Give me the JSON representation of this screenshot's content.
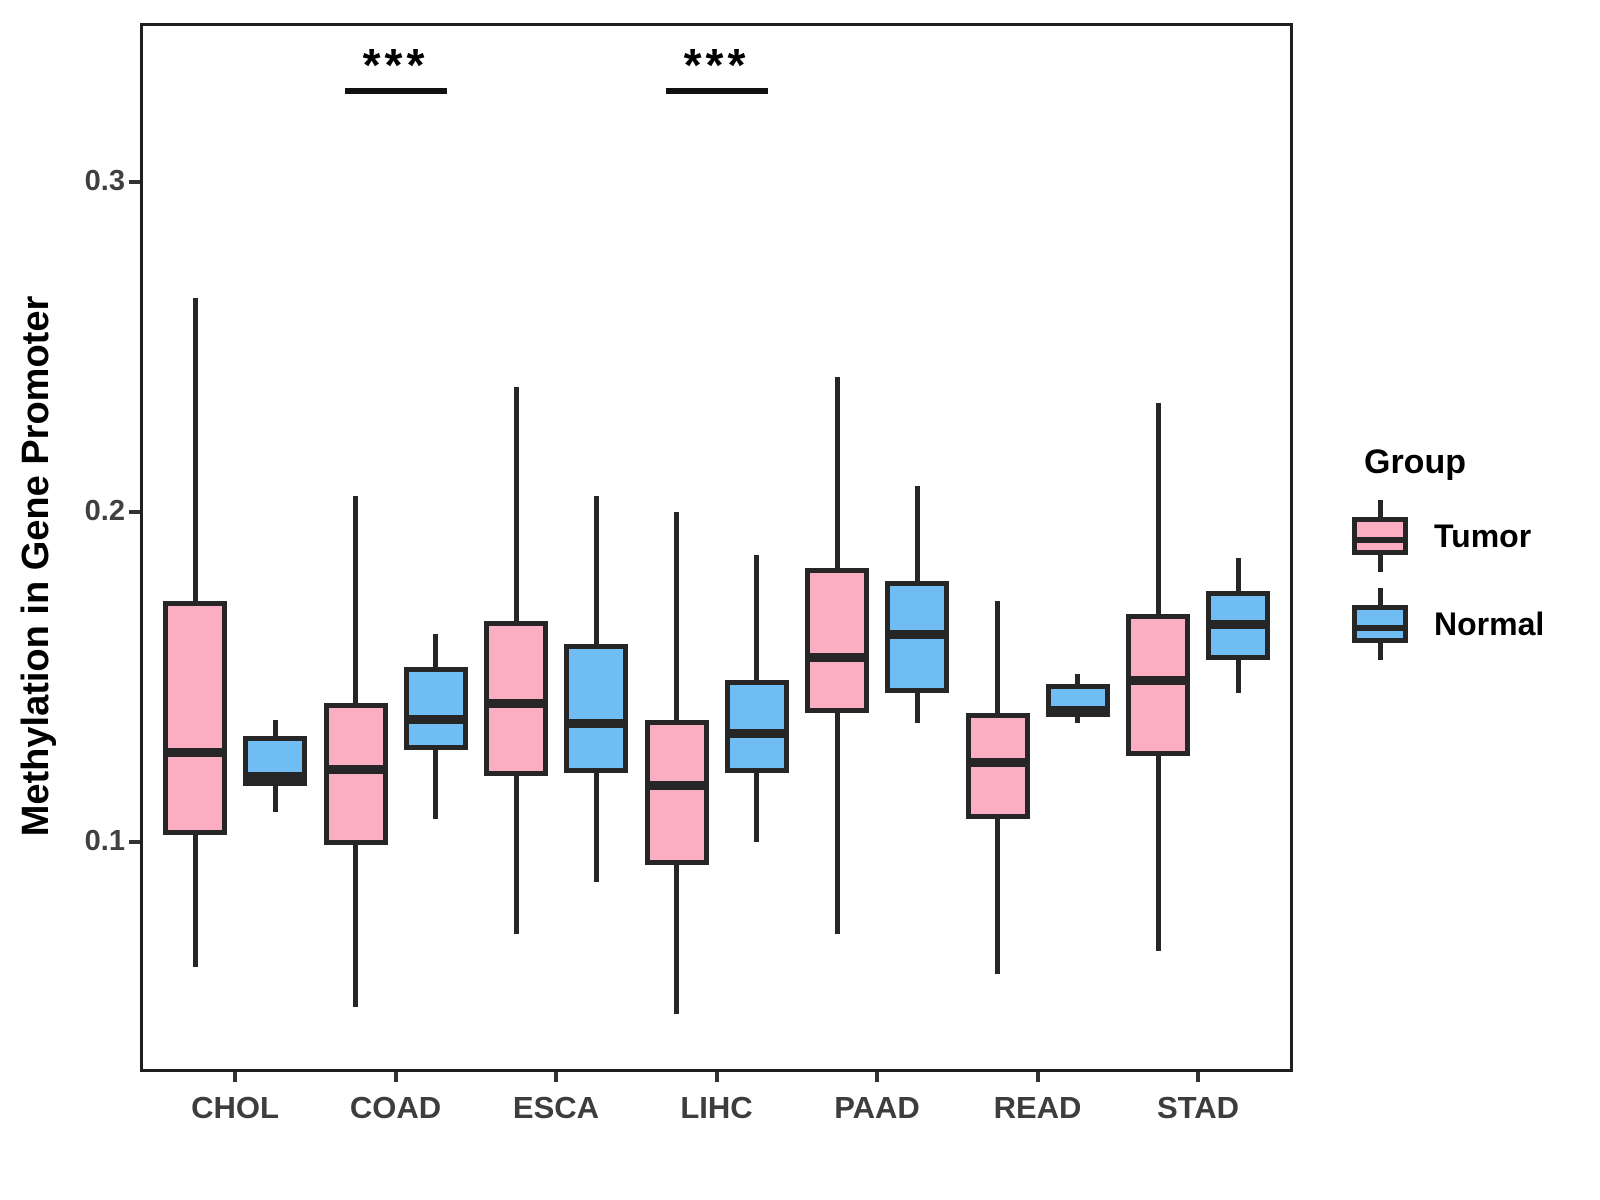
{
  "chart_data": {
    "type": "boxplot",
    "title": "",
    "xlabel": "",
    "ylabel": "Methylation in Gene Promoter",
    "ylim": [
      0.03,
      0.348
    ],
    "yticks": [
      0.3,
      0.2,
      0.1
    ],
    "ytick_labels": [
      "0.3",
      "0.2",
      "0.1"
    ],
    "categories": [
      "CHOL",
      "COAD",
      "ESCA",
      "LIHC",
      "PAAD",
      "READ",
      "STAD"
    ],
    "grid": "off",
    "legend": {
      "title": "Group",
      "position": "right",
      "entries": [
        {
          "label": "Tumor",
          "color": "#FBAEC2"
        },
        {
          "label": "Normal",
          "color": "#6FBDF2"
        }
      ]
    },
    "series": [
      {
        "name": "Tumor",
        "fill": "#FBAEC2",
        "boxes": [
          {
            "category": "CHOL",
            "whisker_low": 0.062,
            "q1": 0.102,
            "median": 0.127,
            "q3": 0.173,
            "whisker_high": 0.265
          },
          {
            "category": "COAD",
            "whisker_low": 0.05,
            "q1": 0.099,
            "median": 0.122,
            "q3": 0.142,
            "whisker_high": 0.205
          },
          {
            "category": "ESCA",
            "whisker_low": 0.072,
            "q1": 0.12,
            "median": 0.142,
            "q3": 0.167,
            "whisker_high": 0.238
          },
          {
            "category": "LIHC",
            "whisker_low": 0.048,
            "q1": 0.093,
            "median": 0.117,
            "q3": 0.137,
            "whisker_high": 0.2
          },
          {
            "category": "PAAD",
            "whisker_low": 0.072,
            "q1": 0.139,
            "median": 0.156,
            "q3": 0.183,
            "whisker_high": 0.241
          },
          {
            "category": "READ",
            "whisker_low": 0.06,
            "q1": 0.107,
            "median": 0.124,
            "q3": 0.139,
            "whisker_high": 0.173
          },
          {
            "category": "STAD",
            "whisker_low": 0.067,
            "q1": 0.126,
            "median": 0.149,
            "q3": 0.169,
            "whisker_high": 0.233
          }
        ]
      },
      {
        "name": "Normal",
        "fill": "#6FBDF2",
        "boxes": [
          {
            "category": "CHOL",
            "whisker_low": 0.109,
            "q1": 0.117,
            "median": 0.12,
            "q3": 0.132,
            "whisker_high": 0.137
          },
          {
            "category": "COAD",
            "whisker_low": 0.107,
            "q1": 0.128,
            "median": 0.137,
            "q3": 0.153,
            "whisker_high": 0.163
          },
          {
            "category": "ESCA",
            "whisker_low": 0.088,
            "q1": 0.121,
            "median": 0.136,
            "q3": 0.16,
            "whisker_high": 0.205
          },
          {
            "category": "LIHC",
            "whisker_low": 0.1,
            "q1": 0.121,
            "median": 0.133,
            "q3": 0.149,
            "whisker_high": 0.187
          },
          {
            "category": "PAAD",
            "whisker_low": 0.136,
            "q1": 0.145,
            "median": 0.163,
            "q3": 0.179,
            "whisker_high": 0.208
          },
          {
            "category": "READ",
            "whisker_low": 0.136,
            "q1": 0.138,
            "median": 0.14,
            "q3": 0.148,
            "whisker_high": 0.151
          },
          {
            "category": "STAD",
            "whisker_low": 0.145,
            "q1": 0.155,
            "median": 0.166,
            "q3": 0.176,
            "whisker_high": 0.186
          }
        ]
      }
    ],
    "significance": [
      {
        "category": "COAD",
        "label": "***"
      },
      {
        "category": "LIHC",
        "label": "***"
      }
    ],
    "colors": {
      "tumor_fill": "#FBAEC2",
      "normal_fill": "#6FBDF2",
      "stroke": "#262626",
      "axis_text": "#404040",
      "panel_border": "#1f1f1f"
    }
  }
}
